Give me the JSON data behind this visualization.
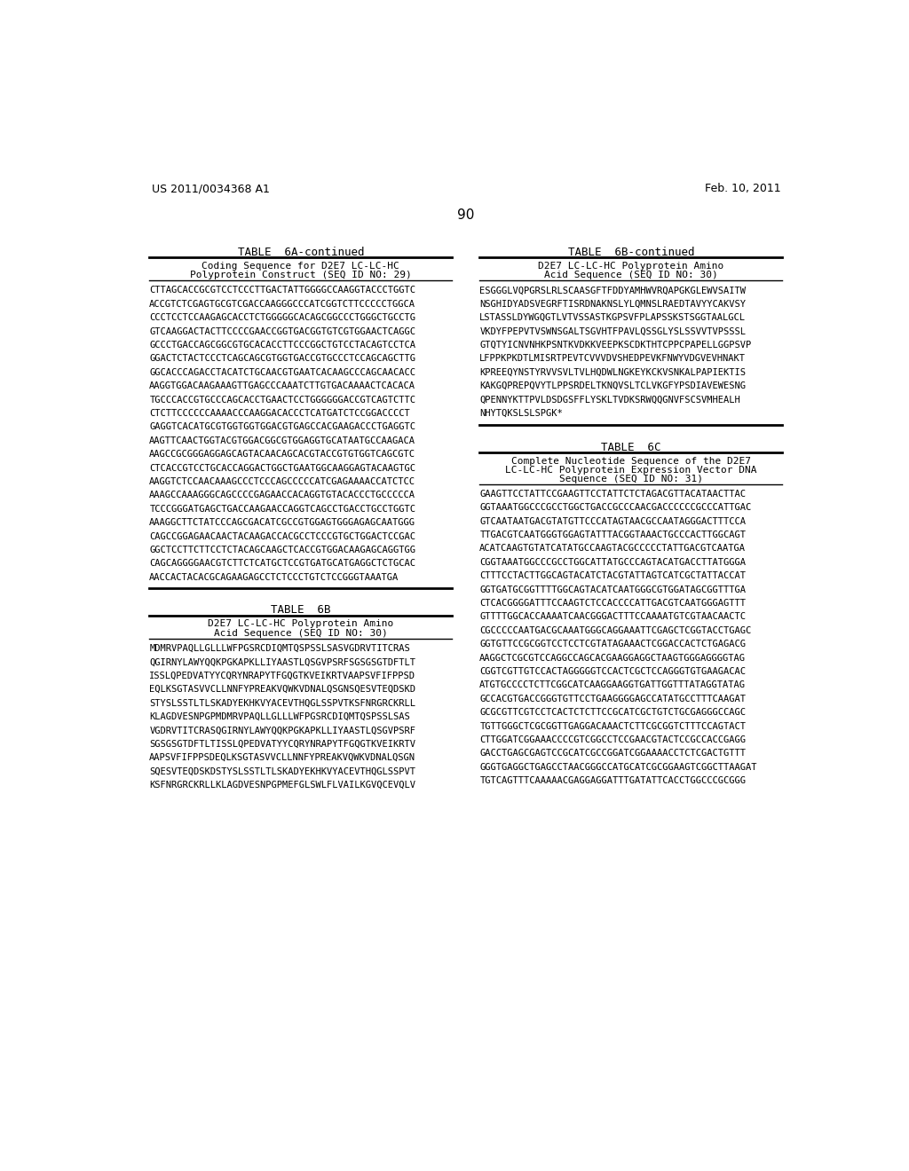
{
  "header_left": "US 2011/0034368 A1",
  "header_right": "Feb. 10, 2011",
  "page_number": "90",
  "bg_color": "#ffffff",
  "text_color": "#000000",
  "table6a_title": "TABLE  6A-continued",
  "table6a_subtitle1": "Coding Sequence for D2E7 LC-LC-HC",
  "table6a_subtitle2": "Polyprotein Construct (SEQ ID NO: 29)",
  "table6a_seq": [
    "CTTAGCACCGCGTCCTCCCTTGACTATTGGGGCCAAGGTACCCTGGTC",
    "ACCGTCTCGAGTGCGTCGACCAAGGGCCCATCGGTCTTCCCCCTGGCA",
    "CCCTCCTCCAAGAGCACCTCTGGGGGCACAGCGGCCCTGGGCTGCCTG",
    "GTCAAGGACTACTTCCCCGAACCGGTGACGGTGTCGTGGAACTCAGGC",
    "GCCCTGACCAGCGGCGTGCACACCTTCCCGGCTGTCCTACAGTCCTCA",
    "GGACTCTACTCCCTCAGCAGCGTGGTGACCGTGCCCTCCAGCAGCTTG",
    "GGCACCCAGACCTACATCTGCAACGTGAATCACAAGCCCAGCAACACC",
    "AAGGTGGACAAGAAAGTTGAGCCCAAATCTTGTGACAAAACTCACACA",
    "TGCCCACCGTGCCCAGCACCTGAACTCCTGGGGGGACCGTCAGTCTTC",
    "CTCTTCCCCCCAAAACCCAAGGACACCCTCATGATCTCCGGACCCCT",
    "GAGGTCACATGCGTGGTGGTGGACGTGAGCCACGAAGACCCTGAGGTC",
    "AAGTTCAACTGGTACGTGGACGGCGTGGAGGTGCATAATGCCAAGACA",
    "AAGCCGCGGGAGGAGCAGTACAACAGCACGTACCGTGTGGTCAGCGTC",
    "CTCACCGTCCTGCACCAGGACTGGCTGAATGGCAAGGAGTACAAGTGC",
    "AAGGTCTCCAACAAAGCCCTCCCAGCCCCCATCGAGAAAACCATCTCC",
    "AAAGCCAAAGGGCAGCCCCGAGAACCACAGGTGTACACCCTGCCCCCA",
    "TCCCGGGATGAGCTGACCAAGAACCAGGTCAGCCTGACCTGCCTGGTC",
    "AAAGGCTTCTATCCCAGCGACATCGCCGTGGAGTGGGAGAGCAATGGG",
    "CAGCCGGAGAACAACTACAAGACCACGCCTCCCGTGCTGGACTCCGAC",
    "GGCTCCTTCTTCCTCTACAGCAAGCTCACCGTGGACAAGAGCAGGTGG",
    "CAGCAGGGGAACGTCTTCTCATGCTCCGTGATGCATGAGGCTCTGCAC",
    "AACCACTACACGCAGAAGAGCCTCTCCCTGTCTCCGGGTAAATGA"
  ],
  "table6b_cont_title": "TABLE  6B-continued",
  "table6b_cont_subtitle1": "D2E7 LC-LC-HC Polyprotein Amino",
  "table6b_cont_subtitle2": "Acid Sequence (SEQ ID NO: 30)",
  "table6b_cont_seq": [
    "ESGGGLVQPGRSLRLSCAASGFTFDDYAMHWVRQAPGKGLEWVSAITW",
    "NSGHIDYADSVEGRFTISRDNAKNSLYLQMNSLRAEDTAVYYCAKVSY",
    "LSTASSLDYWGQGTLVTVSSASTKGPSVFPLAPSSKSTSGGTAALGCL",
    "VKDYFPEPVTVSWNSGALTSGVHTFPAVLQSSGLYSLSSVVTVPSSSL",
    "GTQTYICNVNHKPSNTKVDKKVEEPKSCDKTHTCPPCPAPELLGGPSVP",
    "LFPPKPKDTLMISRTPEVTCVVVDVSHEDPEVKFNWYVDGVEVHNAKT",
    "KPREEQYNSTYRVVSVLTVLHQDWLNGKEYKCKVSNKALPAPIEKTIS",
    "KAKGQPREPQVYTLPPSRDELTKNQVSLTCLVKGFYPSDIAVEWESNG",
    "QPENNYKTTPVLDSDGSFFLYSKLTVDKSRWQQGNVFSCSVMHEALH",
    "NHYTQKSLSLSPGK*"
  ],
  "table6b_title": "TABLE  6B",
  "table6b_subtitle1": "D2E7 LC-LC-HC Polyprotein Amino",
  "table6b_subtitle2": "Acid Sequence (SEQ ID NO: 30)",
  "table6b_seq": [
    "MDMRVPAQLLGLLLWFPGSRCDIQMTQSPSSLSASVGDRVTITCRAS",
    "QGIRNYLAWYQQKPGKAPKLLIYAASTLQSGVPSRFSGSGSGTDFTLT",
    "ISSLQPEDVATYYCQRYNRAPYTFGQGTKVEIKRTVAAPSVFIFPPSD",
    "EQLKSGTASVVCLLNNFYPREAKVQWKVDNALQSGNSQESVTEQDSKD",
    "STYSLSSTLTLSKADYEKHKVYACEVTHQGLSSPVTKSFNRGRCKRLL",
    "KLAGDVESNPGPMDMRVPAQLLGLLLWFPGSRCDIQMTQSPSSLSAS",
    "VGDRVTITCRASQGIRNYLAWYQQKPGKAPKLLIYAASTLQSGVPSRF",
    "SGSGSGTDFTLTISSLQPEDVATYYCQRYNRAPYTFGQGTKVEIKRTV",
    "AAPSVFIFPPSDEQLKSGTASVVCLLNNFYPREAKVQWKVDNALQSGN",
    "SQESVTEQDSKDSTYSLSSTLTLSKADYEKHKVYACEVTHQGLSSPVT",
    "KSFNRGRCKRLLKLAGDVESNPGPMEFGLSWLFLVAILKGVQCEVQLV"
  ],
  "table6c_title": "TABLE  6C",
  "table6c_subtitle1": "Complete Nucleotide Sequence of the D2E7",
  "table6c_subtitle2": "LC-LC-HC Polyprotein Expression Vector DNA",
  "table6c_subtitle3": "Sequence (SEQ ID NO: 31)",
  "table6c_seq": [
    "GAAGTTCCTATTCCGAAGTTCCTATTCTCTAGACGTTACATAACTTAC",
    "GGTAAATGGCCCGCCTGGCTGACCGCCCAACGACCCCCCGCCCATTGAC",
    "GTCAATAATGACGTATGTTCCCATAGTAACGCCAATAGGGACTTTCCA",
    "TTGACGTCAATGGGTGGAGTATTTACGGTAAACTGCCCACTTGGCAGT",
    "ACATCAAGTGTATCATATGCCAAGTACGCCCCCTATTGACGTCAATGA",
    "CGGTAAATGGCCCGCCTGGCATTATGCCCAGTACATGACCTTATGGGA",
    "CTTTCCTACTTGGCAGTACATCTACGTATTAGTCATCGCTATTACCAT",
    "GGTGATGCGGTTTTGGCAGTACATCAATGGGCGTGGATAGCGGTTTGA",
    "CTCACGGGGATTTCCAAGTCTCCACCCCATTGACGTCAATGGGAGTTT",
    "GTTTTGGCACCAAAATCAACGGGACTTTCCAAAATGTCGTAACAACTC",
    "CGCCCCCAATGACGCAAATGGGCAGGAAATTCGAGCTCGGTACCTGAGC",
    "GGTGTTCCGCGGTCCTCCTCGTATAGAAACTCGGACCACTCTGAGACG",
    "AAGGCTCGCGTCCAGGCCAGCACGAAGGAGGCTAAGTGGGAGGGGTAG",
    "CGGTCGTTGTCCACTAGGGGGTCCACTCGCTCCAGGGTGTGAAGACAC",
    "ATGTGCCCCTCTTCGGCATCAAGGAAGGTGATTGGTTTATAGGTATAG",
    "GCCACGTGACCGGGTGTTCCTGAAGGGGAGCCATATGCCTTTCAAGAT",
    "GCGCGTTCGTCCTCACTCTCTTCCGCATCGCTGTCTGCGAGGGCCAGC",
    "TGTTGGGCTCGCGGTTGAGGACAAACTCTTCGCGGTCTTTCCAGTACT",
    "CTTGGATCGGAAACCCCGTCGGCCTCCGAACGTACTCCGCCACCGAGG",
    "GACCTGAGCGAGTCCGCATCGCCGGATCGGAAAACCTCTCGACTGTTT",
    "GGGTGAGGCTGAGCCTAACGGGCCATGCATCGCGGAAGTCGGCTTAAGAT",
    "TGTCAGTTTCAAAAACGAGGAGGATTTGATATTCACCTGGCCCGCGGG"
  ]
}
